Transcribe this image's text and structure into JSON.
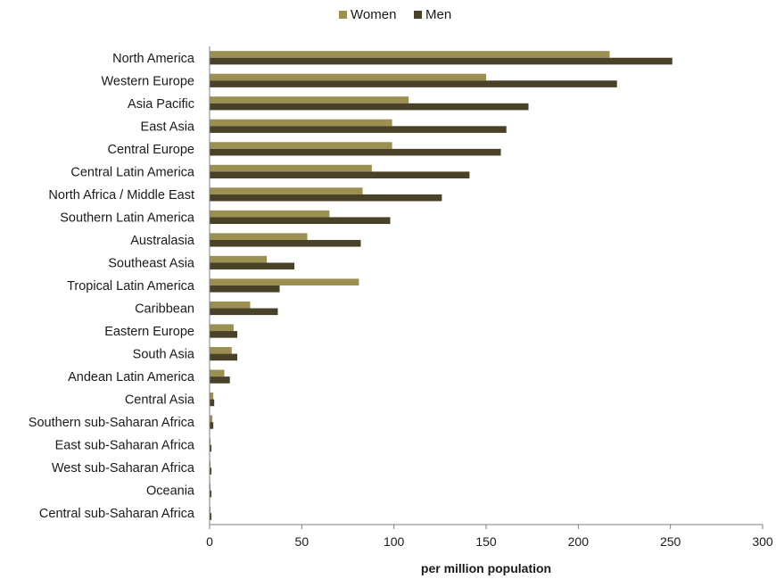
{
  "chart_data": {
    "type": "bar",
    "orientation": "horizontal",
    "categories": [
      "North America",
      "Western Europe",
      "Asia Pacific",
      "East Asia",
      "Central Europe",
      "Central Latin America",
      "North Africa / Middle East",
      "Southern Latin America",
      "Australasia",
      "Southeast Asia",
      "Tropical Latin America",
      "Caribbean",
      "Eastern Europe",
      "South Asia",
      "Andean Latin America",
      "Central Asia",
      "Southern sub-Saharan Africa",
      "East sub-Saharan Africa",
      "West sub-Saharan Africa",
      "Oceania",
      "Central sub-Saharan Africa"
    ],
    "series": [
      {
        "name": "Women",
        "color": "#9b8f52",
        "values": [
          217,
          150,
          108,
          99,
          99,
          88,
          83,
          65,
          53,
          31,
          81,
          22,
          13,
          12,
          8,
          2,
          1.5,
          0.5,
          0.5,
          0.5,
          0.5
        ]
      },
      {
        "name": "Men",
        "color": "#4a4228",
        "values": [
          251,
          221,
          173,
          161,
          158,
          141,
          126,
          98,
          82,
          46,
          38,
          37,
          15,
          15,
          11,
          2.5,
          2,
          1,
          1,
          1,
          1
        ]
      }
    ],
    "title": "",
    "xlabel": "per million population",
    "ylabel": "",
    "xlim": [
      0,
      300
    ],
    "xticks": [
      0,
      50,
      100,
      150,
      200,
      250,
      300
    ],
    "grid": false,
    "legend_position": "top-center"
  }
}
